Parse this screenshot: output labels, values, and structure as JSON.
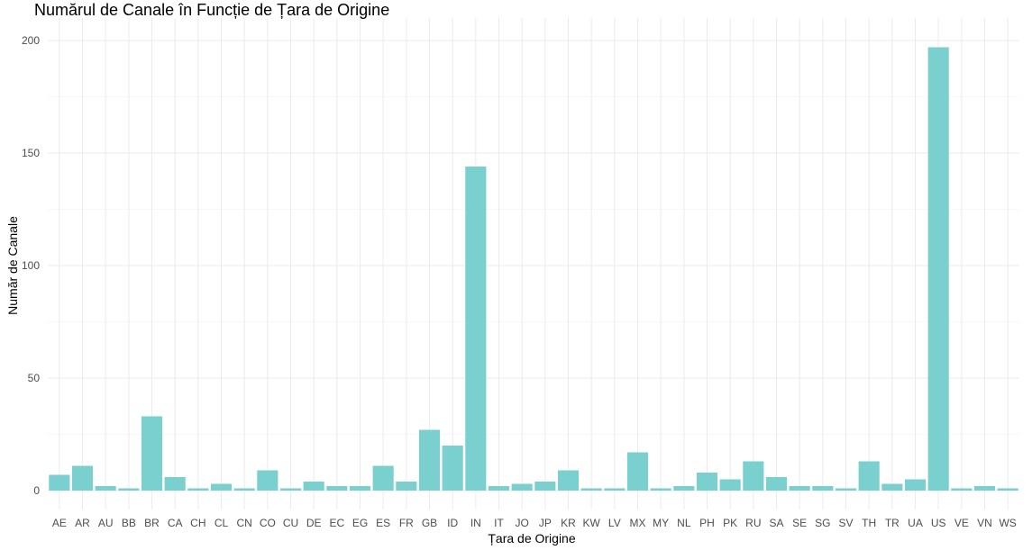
{
  "chart_data": {
    "type": "bar",
    "title": "Numărul de Canale în Funcție de Țara de Origine",
    "xlabel": "Țara de Origine",
    "ylabel": "Număr de Canale",
    "ylim": [
      0,
      210
    ],
    "yticks": [
      0,
      50,
      100,
      150,
      200
    ],
    "grid": true,
    "bar_color": "#7ACFCF",
    "categories": [
      "AE",
      "AR",
      "AU",
      "BB",
      "BR",
      "CA",
      "CH",
      "CL",
      "CN",
      "CO",
      "CU",
      "DE",
      "EC",
      "EG",
      "ES",
      "FR",
      "GB",
      "ID",
      "IN",
      "IT",
      "JO",
      "JP",
      "KR",
      "KW",
      "LV",
      "MX",
      "MY",
      "NL",
      "PH",
      "PK",
      "RU",
      "SA",
      "SE",
      "SG",
      "SV",
      "TH",
      "TR",
      "UA",
      "US",
      "VE",
      "VN",
      "WS"
    ],
    "values": [
      7,
      11,
      2,
      1,
      33,
      6,
      1,
      3,
      1,
      9,
      1,
      4,
      2,
      2,
      11,
      4,
      27,
      20,
      144,
      2,
      3,
      4,
      9,
      1,
      1,
      17,
      1,
      2,
      8,
      5,
      13,
      6,
      2,
      2,
      1,
      13,
      3,
      5,
      197,
      1,
      2,
      1
    ]
  }
}
